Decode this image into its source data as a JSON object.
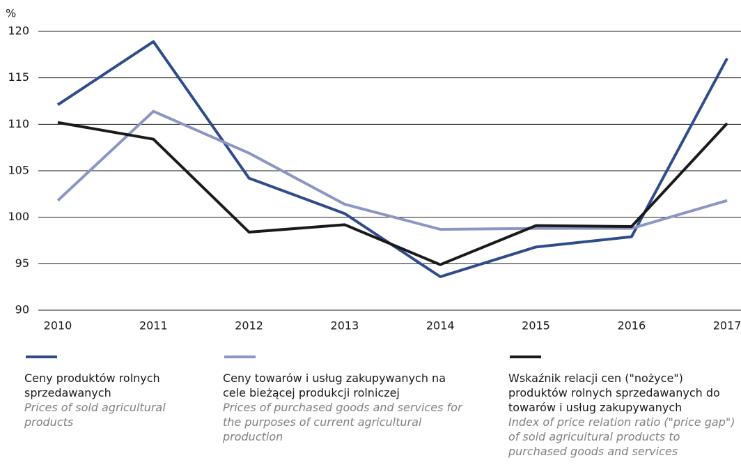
{
  "chart_data": {
    "type": "line",
    "ylabel": "%",
    "categories": [
      "2010",
      "2011",
      "2012",
      "2013",
      "2014",
      "2015",
      "2016",
      "2017"
    ],
    "ylim": [
      90,
      120
    ],
    "yticks": [
      90,
      95,
      100,
      105,
      110,
      115,
      120
    ],
    "grid": true,
    "series": [
      {
        "name": "Ceny produktów rolnych sprzedawanych",
        "name_en": "Prices of sold agricultural products",
        "color": "#2e4d8a",
        "values": [
          112.1,
          118.9,
          104.2,
          100.4,
          93.6,
          96.8,
          97.9,
          117.1
        ]
      },
      {
        "name": "Ceny towarów i usług zakupywanych na cele bieżącej produkcji rolniczej",
        "name_en": "Prices of purchased goods and services for the purposes of current agricultural production",
        "color": "#8b96c4",
        "values": [
          101.8,
          111.4,
          106.9,
          101.4,
          98.7,
          98.8,
          98.8,
          101.8
        ]
      },
      {
        "name": "Wskaźnik relacji cen (\"nożyce\") produktów rolnych sprzedawanych do towarów i usług zakupywanych",
        "name_en": "Index of price relation ratio (\"price gap\") of sold agricultural products to purchased goods and services",
        "color": "#1a1a1a",
        "values": [
          110.2,
          108.4,
          98.4,
          99.2,
          94.9,
          99.1,
          99.0,
          110.1
        ]
      }
    ]
  }
}
